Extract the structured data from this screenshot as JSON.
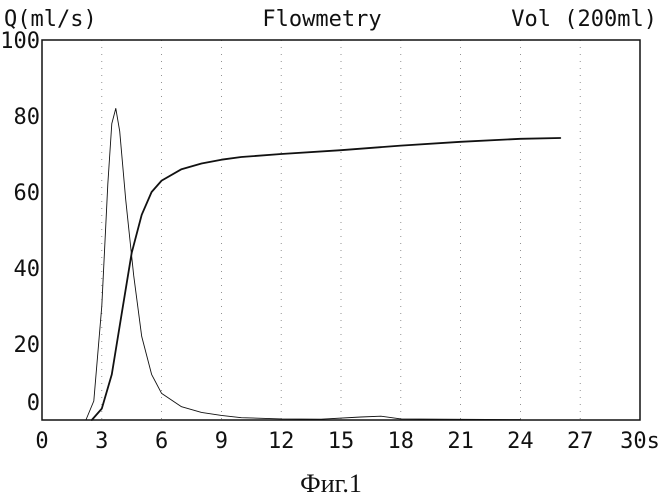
{
  "chart_data": {
    "type": "line",
    "title": "Flowmetry",
    "ylabel_left": "Q(ml/s)",
    "ylabel_right": "Vol (200ml)",
    "x_unit": "s",
    "caption": "Фиг.1",
    "xlim": [
      0,
      30
    ],
    "ylim": [
      0,
      100
    ],
    "x_ticks": [
      0,
      3,
      6,
      9,
      12,
      15,
      18,
      21,
      24,
      27,
      30
    ],
    "x_tick_labels": [
      "0",
      "3",
      "6",
      "9",
      "12",
      "15",
      "18",
      "21",
      "24",
      "27",
      "30s"
    ],
    "y_ticks": [
      0,
      20,
      40,
      60,
      80,
      100
    ],
    "y_tick_labels": [
      "0",
      "20",
      "40",
      "60",
      "80",
      "100"
    ],
    "grid": "dotted-vertical",
    "series": [
      {
        "style": "thin",
        "x": [
          2.2,
          2.6,
          3.0,
          3.3,
          3.5,
          3.7,
          3.9,
          4.2,
          4.6,
          5.0,
          5.5,
          6.0,
          7.0,
          8.0,
          9.0,
          10.0,
          12.0,
          14.0,
          16.0,
          17.0,
          18.0,
          20.0,
          24.0
        ],
        "values": [
          0,
          5,
          30,
          62,
          78,
          82,
          76,
          58,
          38,
          22,
          12,
          7,
          3.5,
          2,
          1.2,
          0.6,
          0.3,
          0.2,
          0.8,
          1.0,
          0.3,
          0.2,
          0.1
        ]
      },
      {
        "style": "thick",
        "x": [
          2.5,
          3.0,
          3.5,
          4.0,
          4.5,
          5.0,
          5.5,
          6.0,
          7.0,
          8.0,
          9.0,
          10.0,
          12.0,
          15.0,
          18.0,
          21.0,
          24.0,
          26.0
        ],
        "values": [
          0,
          3,
          12,
          28,
          44,
          54,
          60,
          63,
          66,
          67.5,
          68.5,
          69.2,
          70,
          71,
          72.2,
          73.2,
          74,
          74.2
        ]
      }
    ]
  },
  "colors": {
    "ink": "#111111",
    "background": "#ffffff"
  }
}
